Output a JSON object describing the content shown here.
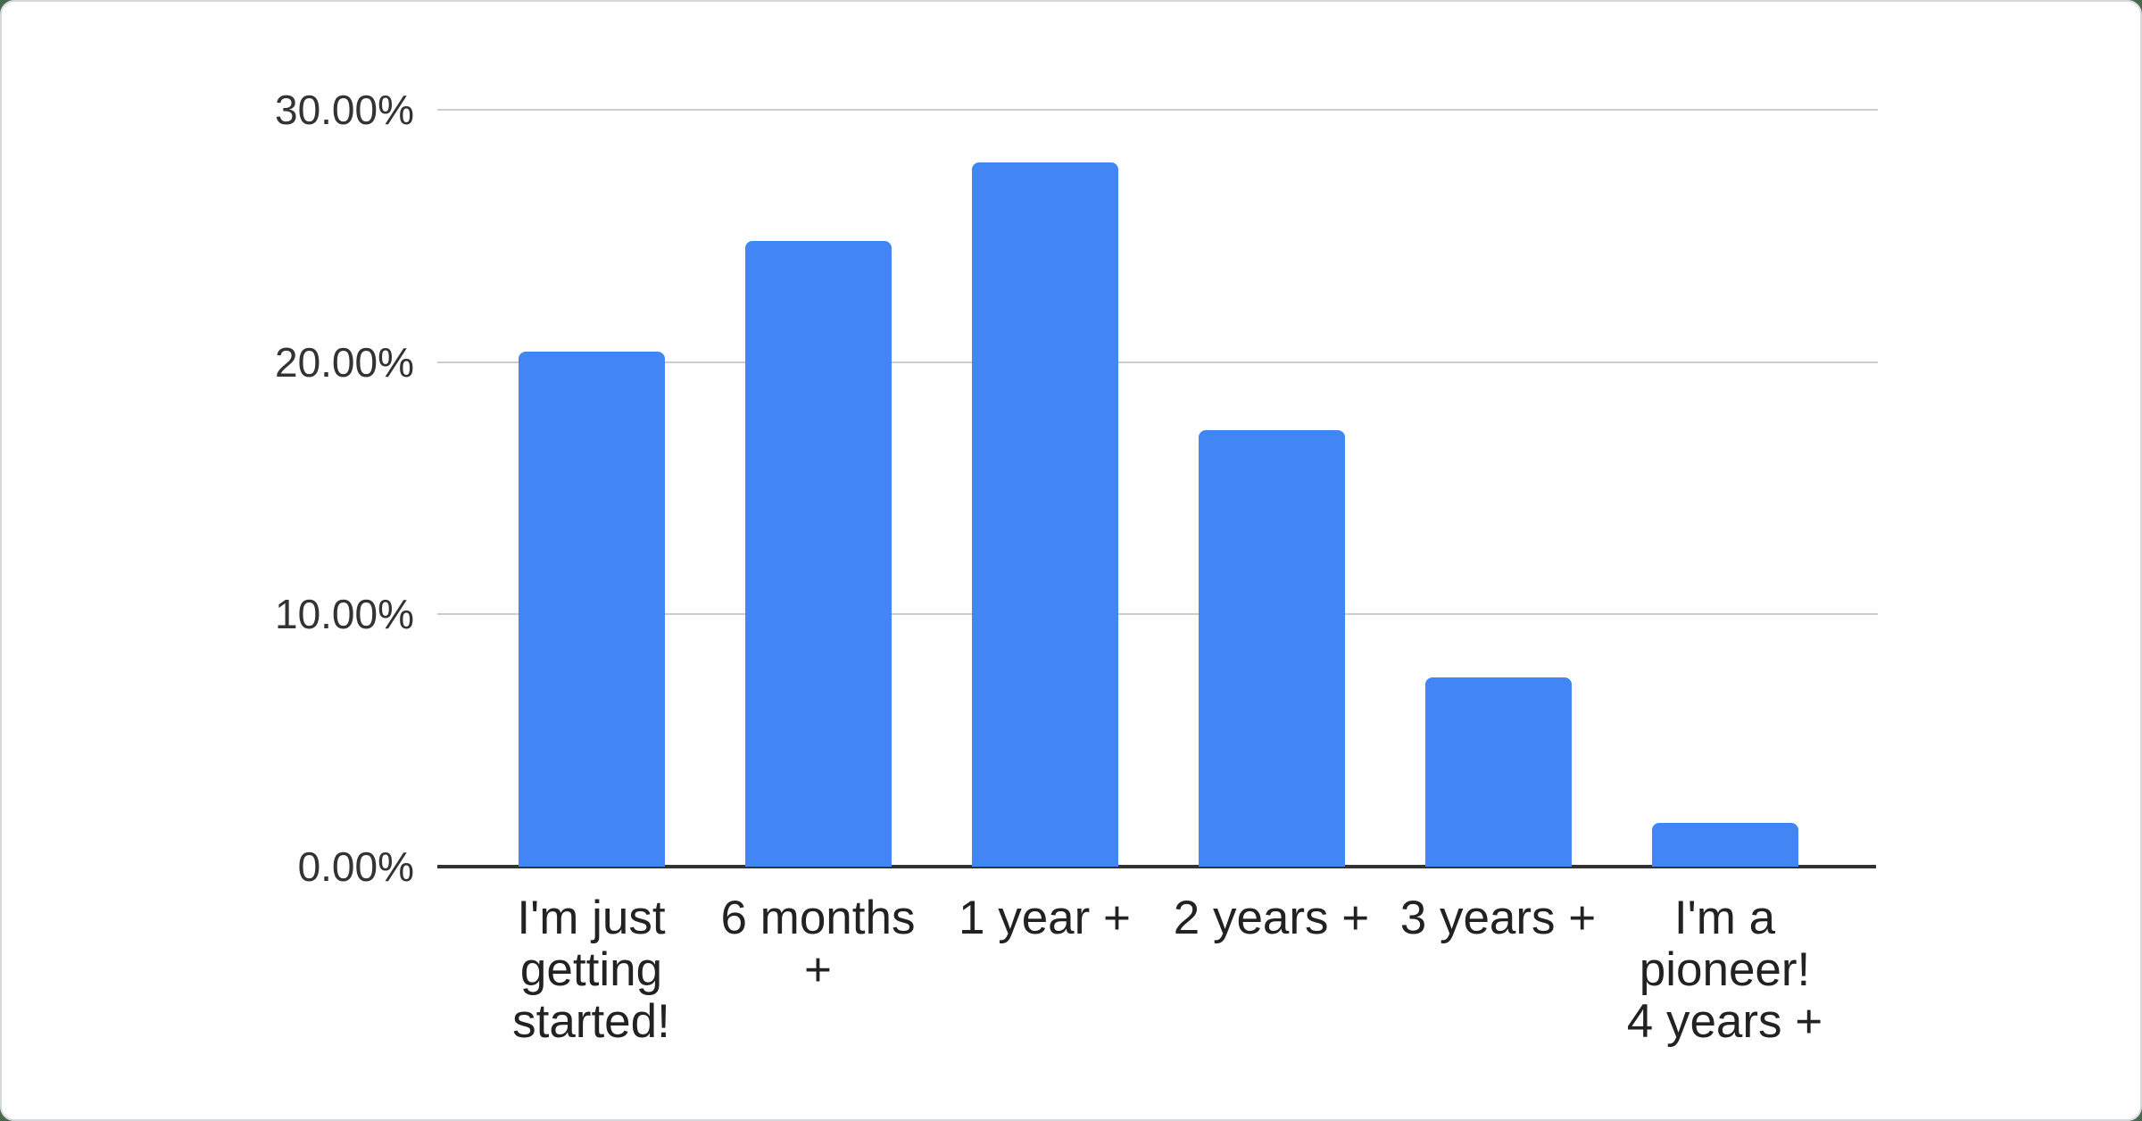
{
  "window": {
    "background_color": "#47684d",
    "card_background": "#ffffff",
    "card_border_color": "#d5d9dc"
  },
  "chart_data": {
    "type": "bar",
    "title": "",
    "xlabel": "",
    "ylabel": "",
    "categories": [
      "I'm just getting started!",
      "6 months +",
      "1 year +",
      "2 years +",
      "3 years +",
      "I'm a pioneer! 4 years +"
    ],
    "categories_wrapped": [
      "I'm just\ngetting\nstarted!",
      "6 months\n+",
      "1 year +",
      "2 years +",
      "3 years +",
      "I'm a\npioneer!\n4 years +"
    ],
    "values": [
      20.4,
      24.8,
      27.9,
      17.3,
      7.5,
      1.75
    ],
    "value_unit": "percent",
    "ylim": [
      0,
      30
    ],
    "y_ticks": [
      {
        "value": 0,
        "label": "0.00%"
      },
      {
        "value": 10,
        "label": "10.00%"
      },
      {
        "value": 20,
        "label": "20.00%"
      },
      {
        "value": 30,
        "label": "30.00%"
      }
    ],
    "grid": true,
    "legend_position": "none",
    "bar_color": "#4285f4",
    "gridline_color": "#cccccc",
    "baseline_color": "#333333",
    "axis_text_color": "#333333"
  }
}
